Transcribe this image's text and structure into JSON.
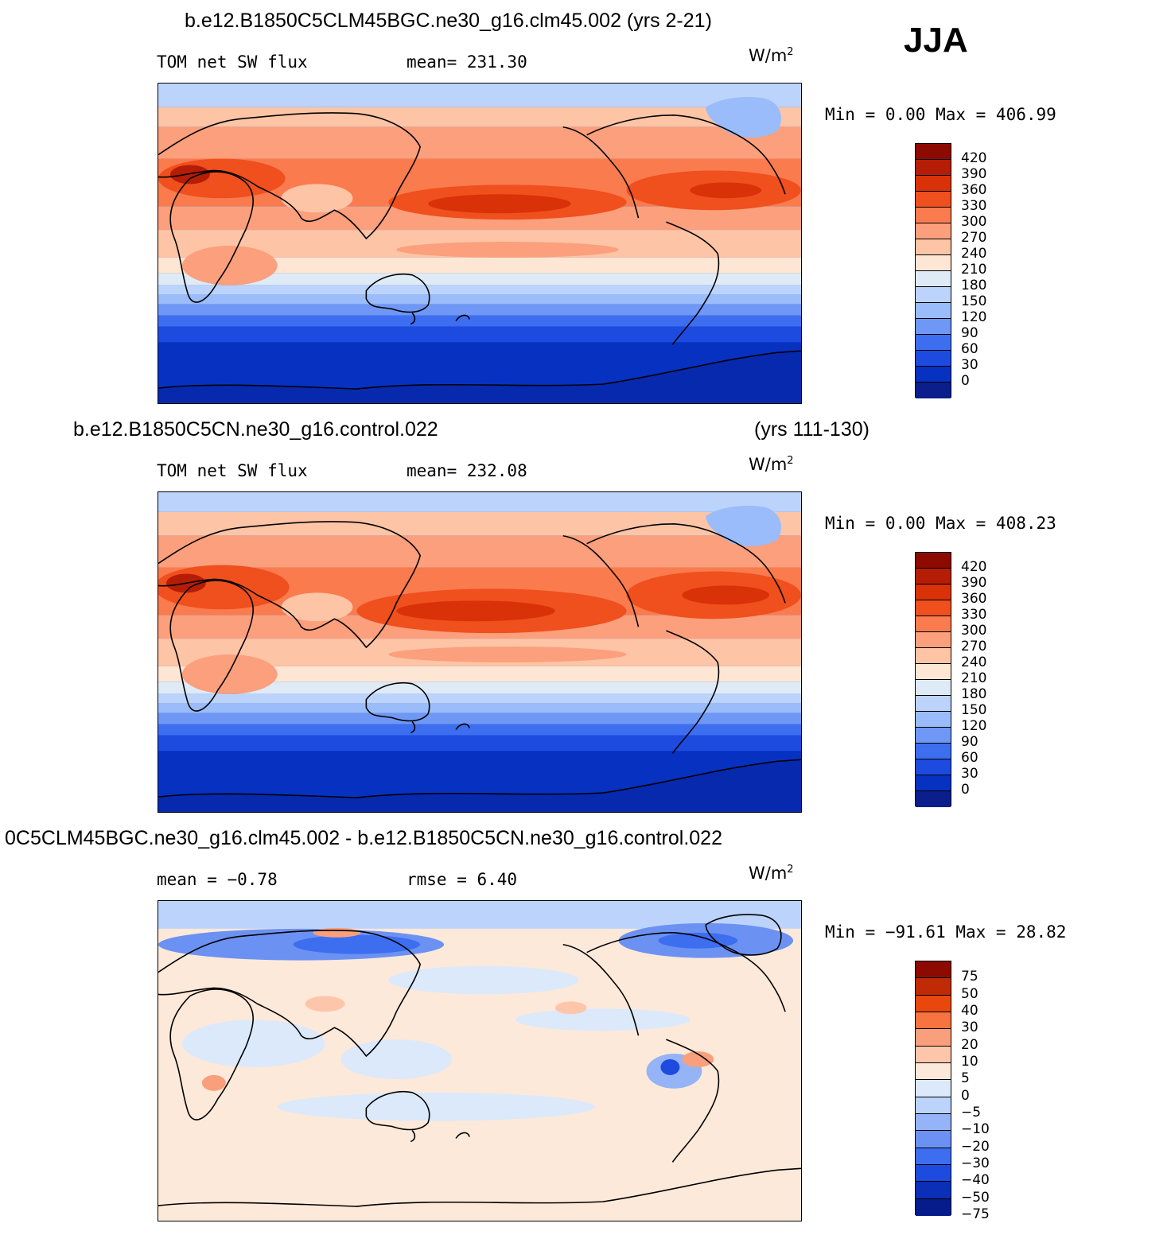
{
  "season": "JJA",
  "panels": [
    {
      "title": "b.e12.B1850C5CLM45BGC.ne30_g16.clm45.002 (yrs 2-21)",
      "title_right": "",
      "left_label": "TOM net SW flux",
      "mid_label": "mean= 231.30",
      "units": "W/m",
      "units_sup": "2",
      "minmax": "Min =    0.00 Max = 406.99",
      "colorbar_labels": [
        "420",
        "390",
        "360",
        "330",
        "300",
        "270",
        "240",
        "210",
        "180",
        "150",
        "120",
        "90",
        "60",
        "30",
        "0"
      ]
    },
    {
      "title": "b.e12.B1850C5CN.ne30_g16.control.022",
      "title_right": "(yrs 111-130)",
      "left_label": "TOM net SW flux",
      "mid_label": "mean= 232.08",
      "units": "W/m",
      "units_sup": "2",
      "minmax": "Min =    0.00 Max = 408.23",
      "colorbar_labels": [
        "420",
        "390",
        "360",
        "330",
        "300",
        "270",
        "240",
        "210",
        "180",
        "150",
        "120",
        "90",
        "60",
        "30",
        "0"
      ]
    },
    {
      "title": "0C5CLM45BGC.ne30_g16.clm45.002 - b.e12.B1850C5CN.ne30_g16.control.022",
      "title_right": "",
      "left_label": "mean =   −0.78",
      "mid_label": "rmse =    6.40",
      "units": "W/m",
      "units_sup": "2",
      "minmax": "Min = −91.61 Max =  28.82",
      "colorbar_labels": [
        "75",
        "50",
        "40",
        "30",
        "20",
        "10",
        "5",
        "0",
        "−5",
        "−10",
        "−20",
        "−30",
        "−40",
        "−50",
        "−75"
      ]
    }
  ],
  "colors": {
    "abs_scale": [
      "#8c0a00",
      "#b51d06",
      "#d93208",
      "#f04f1e",
      "#fa7b4e",
      "#fb9f7c",
      "#fdc4a6",
      "#fde6d4",
      "#deebf7",
      "#bcd4fb",
      "#9abcfa",
      "#6f97f5",
      "#3e6ef0",
      "#1d4be0",
      "#0731c0",
      "#0a1e8c"
    ],
    "diff_scale": [
      "#8c0a00",
      "#c02a04",
      "#e8470e",
      "#f77440",
      "#fa9f7c",
      "#fdc6ab",
      "#fde9da",
      "#dbe9fb",
      "#bcd3fb",
      "#95b4f7",
      "#6b92f2",
      "#3e6ef0",
      "#1d4be0",
      "#0b30b8",
      "#061c8a"
    ]
  }
}
